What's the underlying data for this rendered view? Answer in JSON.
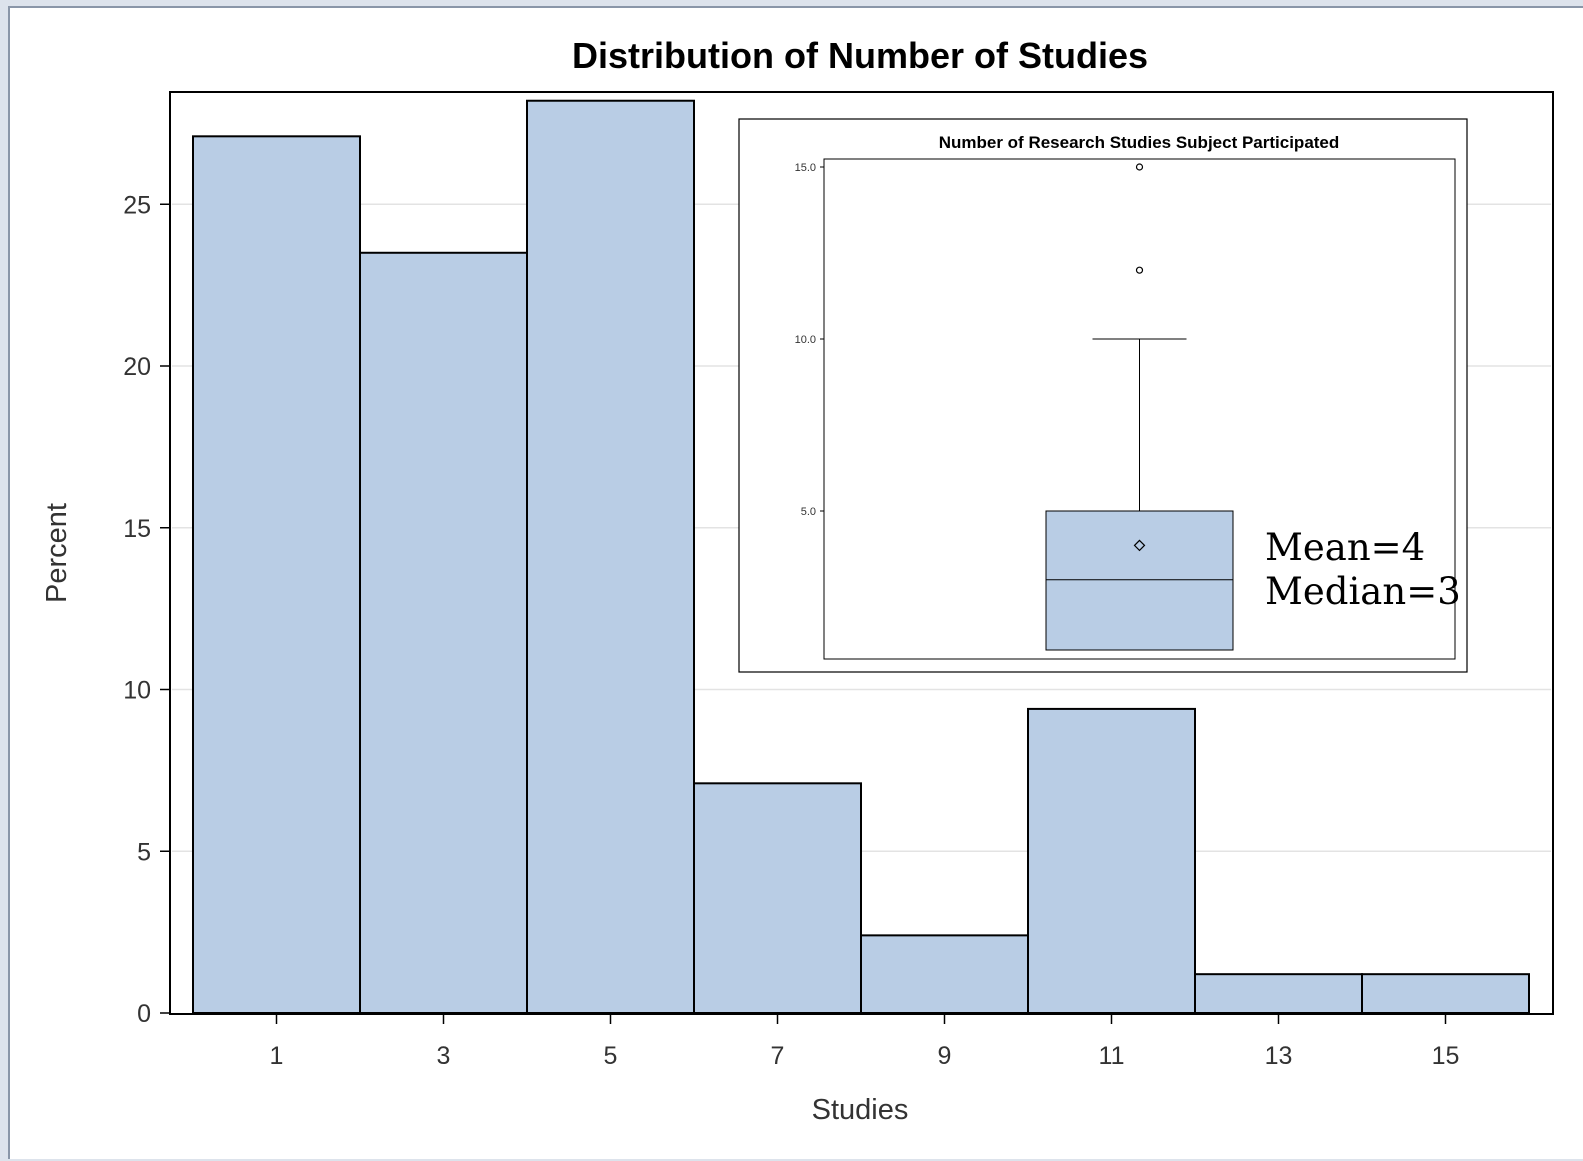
{
  "chart_data": [
    {
      "type": "bar",
      "title": "Distribution of Number of Studies",
      "xlabel": "Studies",
      "ylabel": "Percent",
      "categories": [
        "1",
        "3",
        "5",
        "7",
        "9",
        "11",
        "13",
        "15"
      ],
      "bins": [
        [
          0,
          2
        ],
        [
          2,
          4
        ],
        [
          4,
          6
        ],
        [
          6,
          8
        ],
        [
          8,
          10
        ],
        [
          10,
          12
        ],
        [
          12,
          14
        ],
        [
          14,
          16
        ]
      ],
      "values": [
        27.1,
        23.5,
        28.2,
        7.1,
        2.4,
        9.4,
        1.2,
        1.2
      ],
      "yticks": [
        0,
        5,
        10,
        15,
        20,
        25
      ],
      "ylim": [
        0,
        28.2
      ],
      "grid": true,
      "bar_color": "#b9cde5",
      "edge_color": "#000000"
    },
    {
      "type": "box",
      "title": "Number of Research Studies Subject Participated",
      "yticks": [
        "5.0",
        "10.0",
        "15.0"
      ],
      "min": 1,
      "q1": 1,
      "median": 3,
      "q3": 5,
      "whisker_high": 10,
      "mean": 4,
      "outliers": [
        12,
        15
      ],
      "ylim": [
        1,
        15
      ],
      "annotations": [
        "Mean=4",
        "Median=3"
      ],
      "box_color": "#b9cde5"
    }
  ]
}
